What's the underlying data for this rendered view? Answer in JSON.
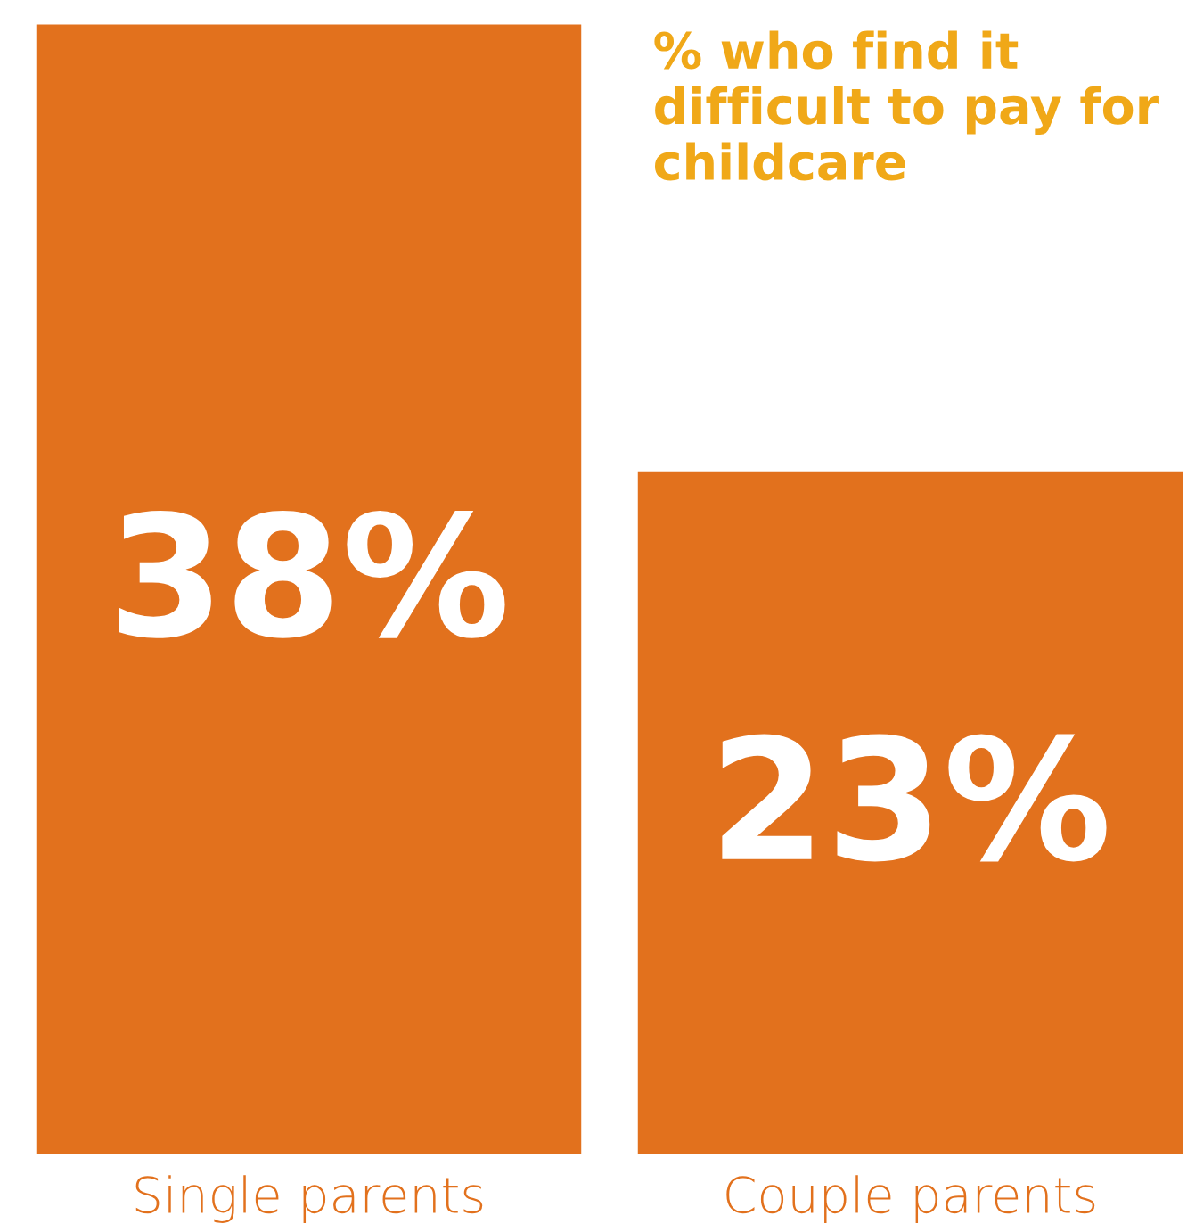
{
  "chart_data": {
    "type": "bar",
    "title": "% who find it difficult to pay for childcare",
    "categories": [
      "Single parents",
      "Couple parents"
    ],
    "values": [
      38,
      23
    ],
    "value_labels": [
      "38%",
      "23%"
    ],
    "color": "#e2711d",
    "grid": false,
    "legend": false
  }
}
